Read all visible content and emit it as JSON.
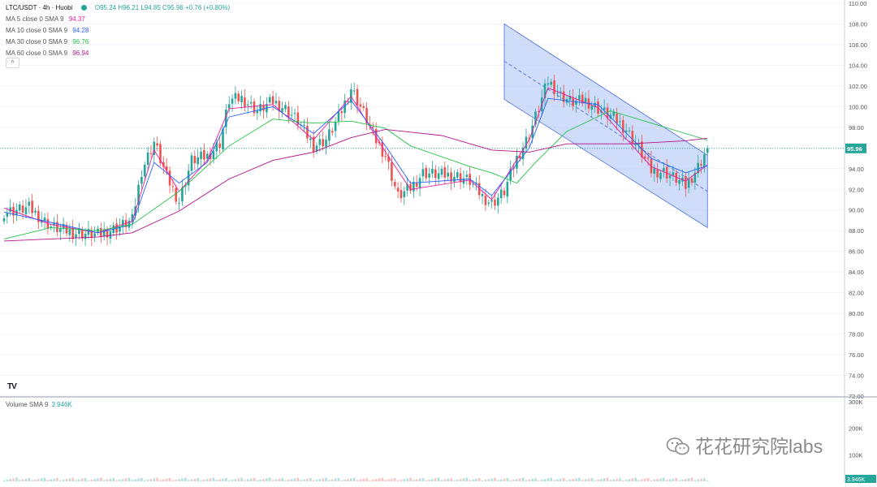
{
  "legend": {
    "symbol": "LTC/USDT · 4h · Huobi",
    "ohlc": "O95.24 H96.21 L94.85 C95.96 +0.76 (+0.80%)",
    "ma": [
      {
        "label": "MA 5 close 0 SMA 9",
        "value": "94.37",
        "color": "#e91e9c"
      },
      {
        "label": "MA 10 close 0 SMA 9",
        "value": "94.28",
        "color": "#2962ff"
      },
      {
        "label": "MA 30 close 0 SMA 9",
        "value": "96.76",
        "color": "#26c24a"
      },
      {
        "label": "MA 60 close 0 SMA 9",
        "value": "96.94",
        "color": "#b3138a"
      }
    ],
    "collapse": "^"
  },
  "volume_legend": {
    "label": "Volume SMA 9",
    "value": "3.946K"
  },
  "last_price_label": "95.96",
  "volume_last_label": "3.946K",
  "tv_logo": "TV",
  "watermark": "花花研究院labs",
  "colors": {
    "up": "#26a69a",
    "down": "#ef5350",
    "channel": "#a8c0f5",
    "channel_line": "#4a6ee0",
    "grid": "#f0f3fa"
  },
  "chart_data": {
    "type": "candlestick",
    "symbol": "LTC/USDT",
    "interval": "4h",
    "exchange": "Huobi",
    "y_ticks": [
      "110.00",
      "108.00",
      "106.00",
      "104.00",
      "102.00",
      "100.00",
      "98.00",
      "96.00",
      "94.00",
      "92.00",
      "90.00",
      "88.00",
      "86.00",
      "84.00",
      "82.00",
      "80.00",
      "78.00",
      "76.00",
      "74.00",
      "72.00"
    ],
    "ylim": [
      72,
      110
    ],
    "volume_ticks": [
      "300K",
      "200K",
      "100K"
    ],
    "volume_ylim": [
      0,
      300
    ],
    "last_close": 95.96,
    "series": [
      {
        "name": "MA 5",
        "value": 94.37,
        "color": "#e91e9c"
      },
      {
        "name": "MA 10",
        "value": 94.28,
        "color": "#2962ff"
      },
      {
        "name": "MA 30",
        "value": 96.76,
        "color": "#26c24a"
      },
      {
        "name": "MA 60",
        "value": 96.94,
        "color": "#b3138a"
      }
    ],
    "close_anchors": [
      [
        0,
        89.8
      ],
      [
        8,
        90.2
      ],
      [
        15,
        88.4
      ],
      [
        22,
        87.8
      ],
      [
        30,
        87.6
      ],
      [
        37,
        88.4
      ],
      [
        41,
        89.0
      ],
      [
        44,
        93.8
      ],
      [
        48,
        96.6
      ],
      [
        52,
        93.2
      ],
      [
        56,
        90.8
      ],
      [
        60,
        94.8
      ],
      [
        65,
        95.2
      ],
      [
        69,
        96.5
      ],
      [
        72,
        100.6
      ],
      [
        76,
        100.8
      ],
      [
        81,
        99.6
      ],
      [
        86,
        100.5
      ],
      [
        90,
        99.8
      ],
      [
        94,
        98.6
      ],
      [
        99,
        96.2
      ],
      [
        103,
        96.8
      ],
      [
        107,
        98.9
      ],
      [
        111,
        101.8
      ],
      [
        115,
        99.4
      ],
      [
        119,
        96.7
      ],
      [
        122,
        95.3
      ],
      [
        126,
        91.3
      ],
      [
        130,
        92.1
      ],
      [
        134,
        93.6
      ],
      [
        140,
        93.4
      ],
      [
        145,
        93.3
      ],
      [
        149,
        92.8
      ],
      [
        153,
        91.3
      ],
      [
        156,
        90.6
      ],
      [
        160,
        91.8
      ],
      [
        164,
        95.0
      ],
      [
        168,
        97.3
      ],
      [
        171,
        99.9
      ],
      [
        174,
        102.5
      ],
      [
        178,
        101.1
      ],
      [
        182,
        100.4
      ],
      [
        186,
        100.6
      ],
      [
        190,
        99.8
      ],
      [
        195,
        98.9
      ],
      [
        199,
        97.8
      ],
      [
        203,
        96.0
      ],
      [
        207,
        93.8
      ],
      [
        211,
        93.7
      ],
      [
        215,
        93.0
      ],
      [
        218,
        92.3
      ],
      [
        222,
        94.2
      ],
      [
        225,
        95.96
      ]
    ],
    "ma_lines": {
      "ma5": [
        [
          0,
          90.2
        ],
        [
          15,
          88.6
        ],
        [
          30,
          87.8
        ],
        [
          41,
          88.9
        ],
        [
          48,
          95.8
        ],
        [
          56,
          91.8
        ],
        [
          65,
          94.8
        ],
        [
          72,
          99.8
        ],
        [
          86,
          100.2
        ],
        [
          99,
          96.8
        ],
        [
          111,
          101.0
        ],
        [
          122,
          95.6
        ],
        [
          130,
          92.0
        ],
        [
          149,
          92.9
        ],
        [
          156,
          91.0
        ],
        [
          168,
          96.8
        ],
        [
          174,
          101.8
        ],
        [
          190,
          99.9
        ],
        [
          207,
          94.2
        ],
        [
          218,
          92.8
        ],
        [
          225,
          94.37
        ]
      ],
      "ma10": [
        [
          0,
          89.8
        ],
        [
          15,
          88.8
        ],
        [
          30,
          87.8
        ],
        [
          41,
          88.6
        ],
        [
          48,
          94.6
        ],
        [
          56,
          92.6
        ],
        [
          65,
          94.6
        ],
        [
          72,
          99.0
        ],
        [
          86,
          100.0
        ],
        [
          99,
          97.4
        ],
        [
          111,
          100.6
        ],
        [
          122,
          96.2
        ],
        [
          130,
          92.6
        ],
        [
          149,
          93.0
        ],
        [
          156,
          91.4
        ],
        [
          168,
          96.0
        ],
        [
          174,
          100.8
        ],
        [
          190,
          100.2
        ],
        [
          207,
          95.0
        ],
        [
          218,
          93.6
        ],
        [
          225,
          94.28
        ]
      ],
      "ma30": [
        [
          0,
          87.2
        ],
        [
          15,
          88.3
        ],
        [
          30,
          88.0
        ],
        [
          41,
          88.6
        ],
        [
          56,
          91.8
        ],
        [
          72,
          96.2
        ],
        [
          86,
          98.8
        ],
        [
          99,
          98.4
        ],
        [
          111,
          98.6
        ],
        [
          122,
          97.9
        ],
        [
          130,
          96.2
        ],
        [
          149,
          94.2
        ],
        [
          156,
          93.6
        ],
        [
          164,
          92.6
        ],
        [
          170,
          94.6
        ],
        [
          180,
          97.6
        ],
        [
          194,
          99.6
        ],
        [
          207,
          98.4
        ],
        [
          218,
          97.4
        ],
        [
          225,
          96.76
        ]
      ],
      "ma60": [
        [
          0,
          87.0
        ],
        [
          30,
          87.4
        ],
        [
          41,
          87.8
        ],
        [
          56,
          89.9
        ],
        [
          72,
          93.0
        ],
        [
          86,
          94.8
        ],
        [
          99,
          95.6
        ],
        [
          111,
          97.0
        ],
        [
          122,
          97.8
        ],
        [
          140,
          97.2
        ],
        [
          156,
          95.8
        ],
        [
          168,
          95.6
        ],
        [
          180,
          96.4
        ],
        [
          200,
          96.4
        ],
        [
          218,
          96.7
        ],
        [
          225,
          96.94
        ]
      ]
    },
    "channel": {
      "upper_start": [
        160,
        108.0
      ],
      "upper_end": [
        225,
        95.3
      ],
      "lower_start": [
        160,
        100.7
      ],
      "lower_end": [
        225,
        88.3
      ],
      "mid_start": [
        160,
        104.4
      ],
      "mid_end": [
        225,
        91.8
      ]
    }
  }
}
